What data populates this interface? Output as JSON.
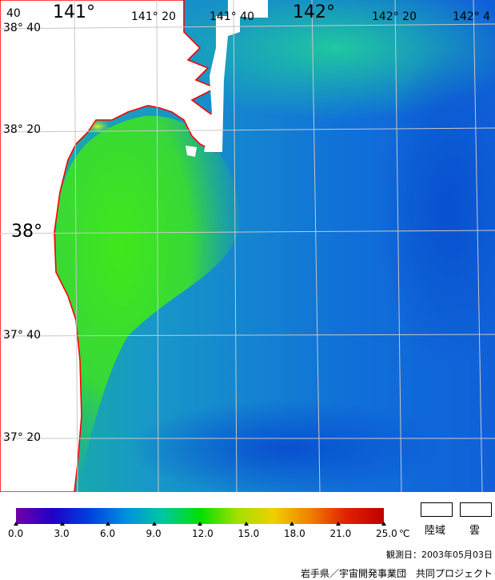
{
  "map": {
    "lon_labels": [
      "40",
      "141°",
      "141° 20",
      "141° 40",
      "142°",
      "142° 20",
      "142° 4"
    ],
    "lat_labels": [
      "38° 40",
      "38° 20",
      "38°",
      "37° 40",
      "37° 20"
    ],
    "coastline_color": "#ff0000",
    "land_color": "#ffffff",
    "grid_color": "#c8c8c8"
  },
  "legend": {
    "ticks": [
      "0.0",
      "3.0",
      "6.0",
      "9.0",
      "12.0",
      "15.0",
      "18.0",
      "21.0",
      "25.0"
    ],
    "unit": "℃",
    "land_label": "陸域",
    "cloud_label": "雲",
    "colors": [
      "#7000a8",
      "#2000c8",
      "#0040e0",
      "#0090e0",
      "#00c8a0",
      "#00e000",
      "#a0e000",
      "#f0d000",
      "#f08000",
      "#e02000",
      "#c00000"
    ]
  },
  "observation_date": "観測日：2003年05月03日",
  "credit": "岩手県／宇宙開発事業団　共同プロジェクト"
}
